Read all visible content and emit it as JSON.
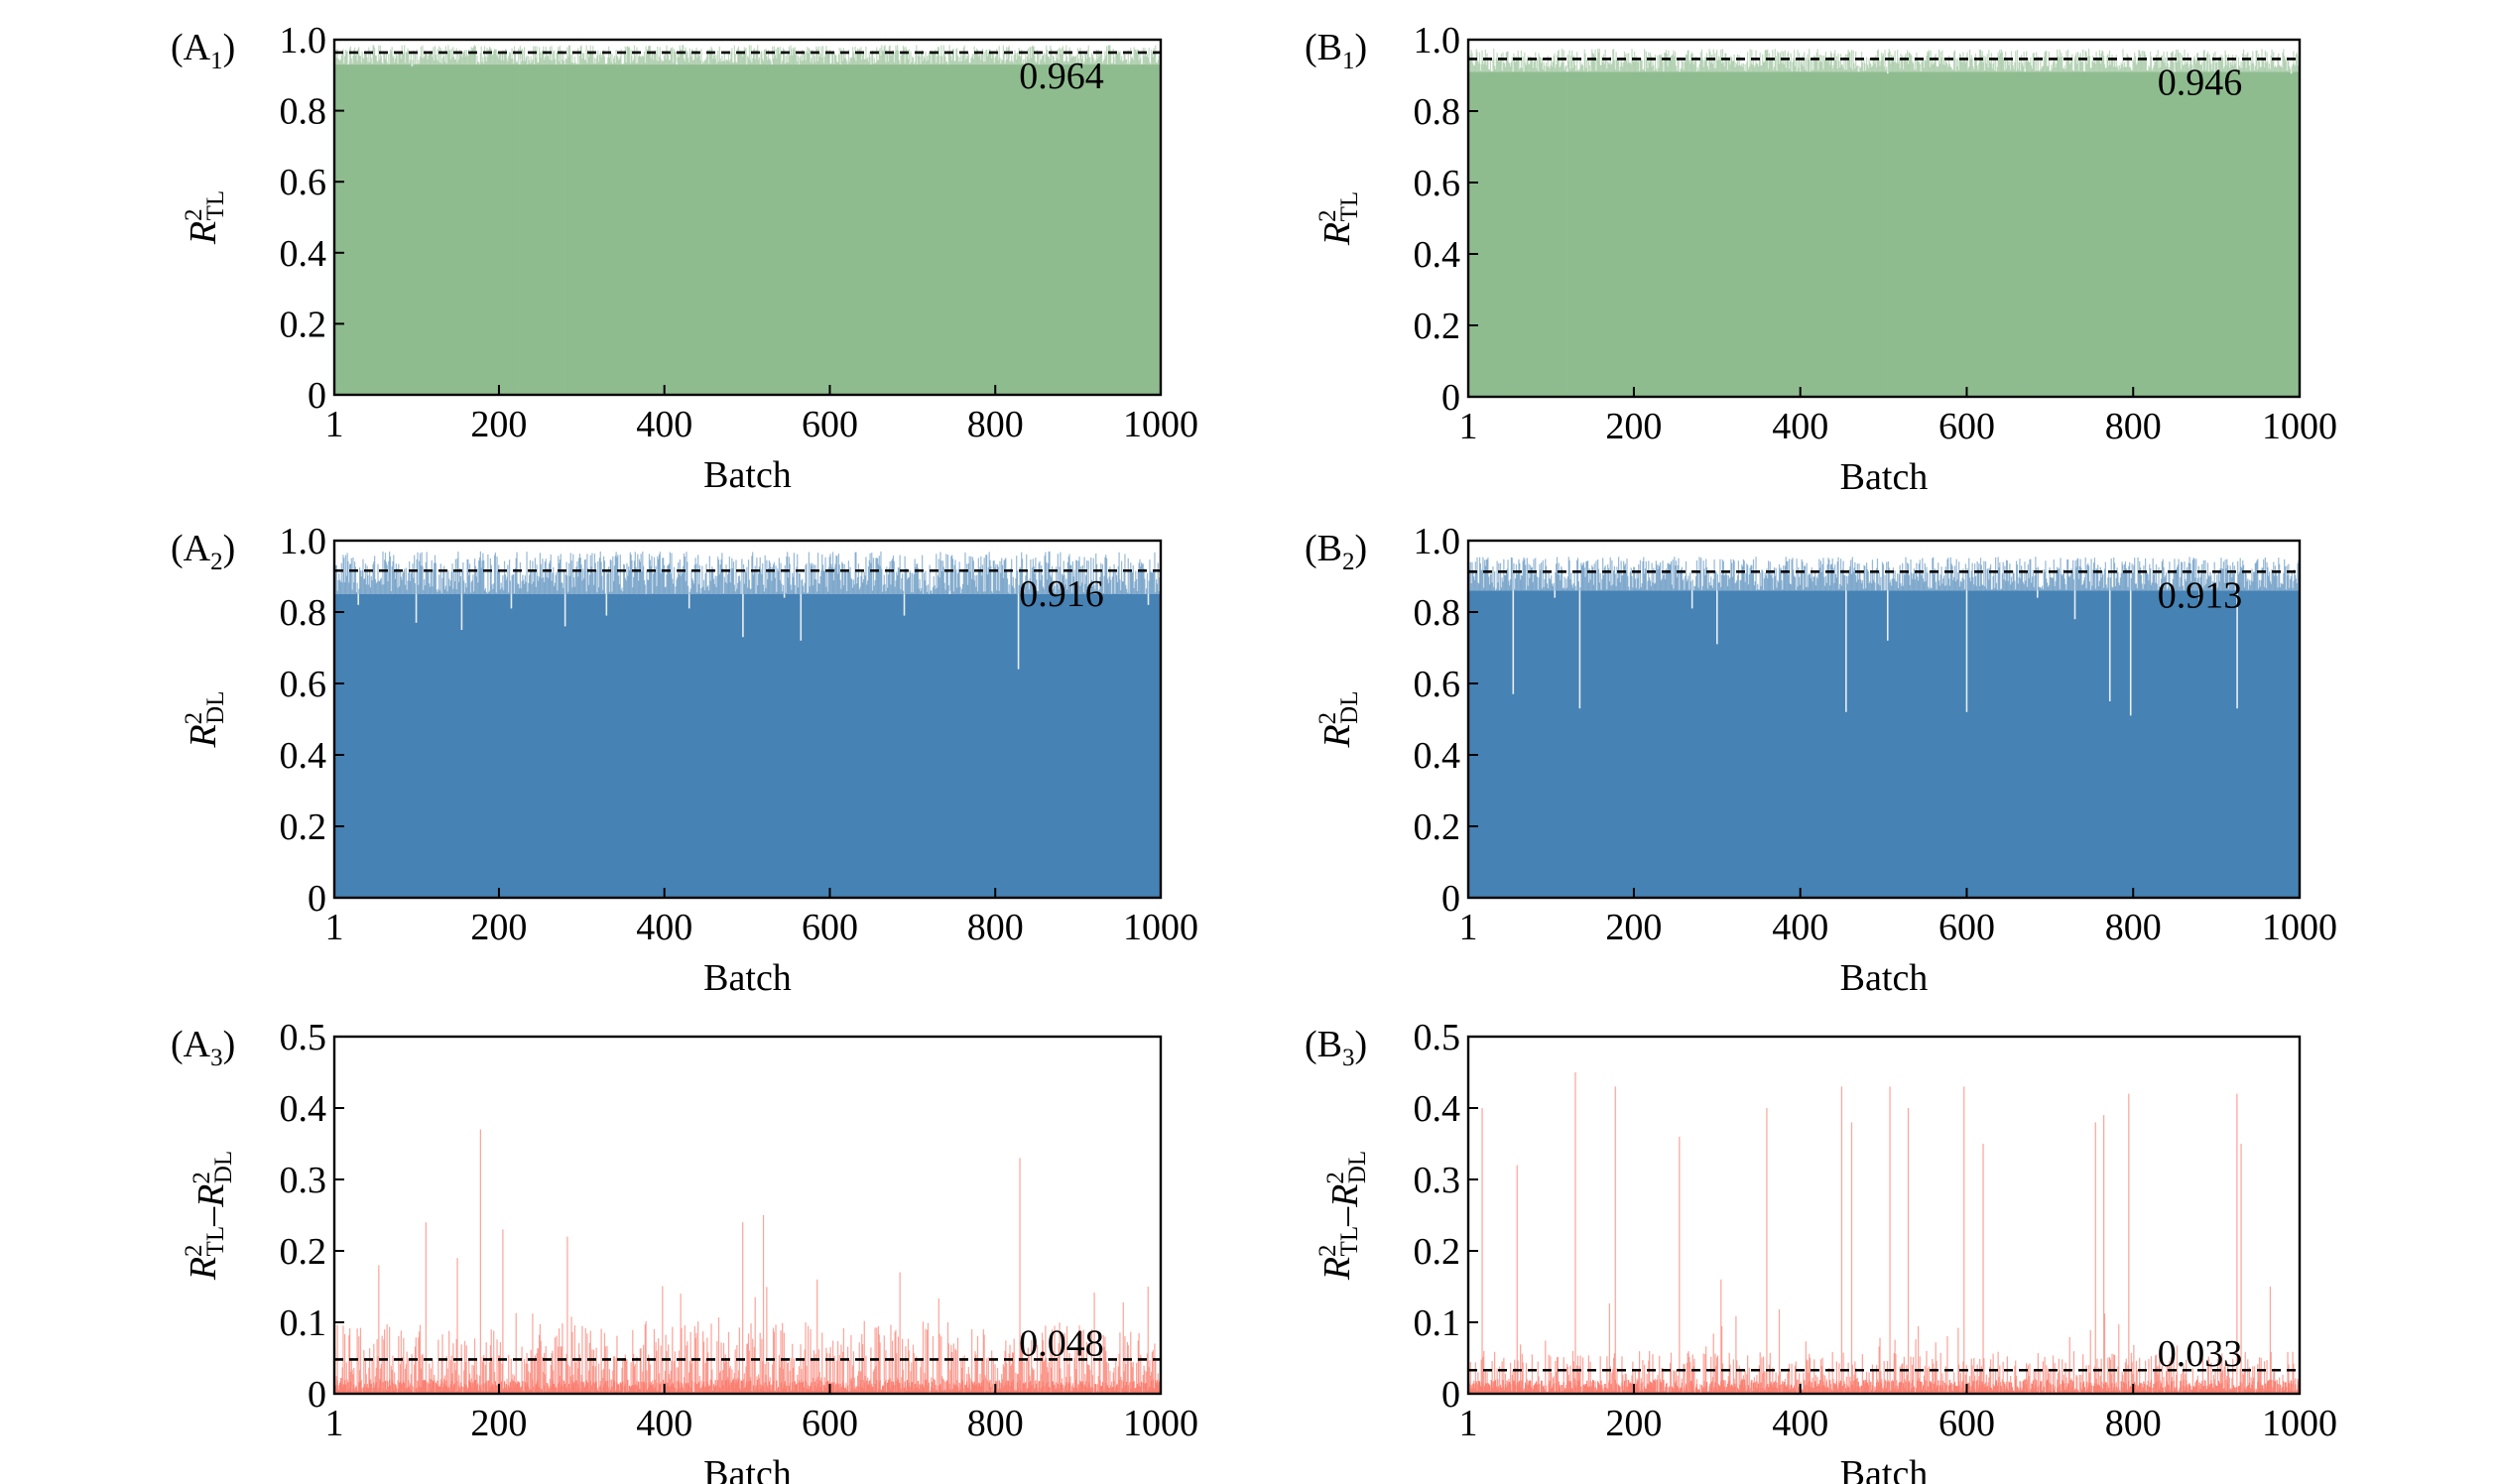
{
  "colors": {
    "tl": "#8fbc8f",
    "dl": "#4682b4",
    "diff": "#fa8072",
    "mean": "#000000"
  },
  "chart_data": [
    {
      "id": "A1",
      "type": "bar",
      "panel_label": "A",
      "panel_sub": "1",
      "ylabel_sub": "TL",
      "xlabel": "Batch",
      "xlim": [
        1,
        1000
      ],
      "ylim": [
        0,
        1.0
      ],
      "xticks": [
        "1",
        "200",
        "400",
        "600",
        "800",
        "1000"
      ],
      "yticks": [
        "0",
        "0.2",
        "0.4",
        "0.6",
        "0.8",
        "1.0"
      ],
      "mean": 0.964,
      "mean_label": "0.964",
      "series_color": "tl",
      "n_batches": 1000,
      "value_typical_range": [
        0.93,
        0.985
      ]
    },
    {
      "id": "B1",
      "type": "bar",
      "panel_label": "B",
      "panel_sub": "1",
      "ylabel_sub": "TL",
      "xlabel": "Batch",
      "xlim": [
        1,
        1000
      ],
      "ylim": [
        0,
        1.0
      ],
      "xticks": [
        "1",
        "200",
        "400",
        "600",
        "800",
        "1000"
      ],
      "yticks": [
        "0",
        "0.2",
        "0.4",
        "0.6",
        "0.8",
        "1.0"
      ],
      "mean": 0.946,
      "mean_label": "0.946",
      "series_color": "tl",
      "n_batches": 1000,
      "value_typical_range": [
        0.91,
        0.975
      ]
    },
    {
      "id": "A2",
      "type": "bar",
      "panel_label": "A",
      "panel_sub": "2",
      "ylabel_sub": "DL",
      "xlabel": "Batch",
      "xlim": [
        1,
        1000
      ],
      "ylim": [
        0,
        1.0
      ],
      "xticks": [
        "1",
        "200",
        "400",
        "600",
        "800",
        "1000"
      ],
      "yticks": [
        "0",
        "0.2",
        "0.4",
        "0.6",
        "0.8",
        "1.0"
      ],
      "mean": 0.916,
      "mean_label": "0.916",
      "series_color": "dl",
      "n_batches": 1000,
      "value_typical_range": [
        0.85,
        0.97
      ]
    },
    {
      "id": "B2",
      "type": "bar",
      "panel_label": "B",
      "panel_sub": "2",
      "ylabel_sub": "DL",
      "xlabel": "Batch",
      "xlim": [
        1,
        1000
      ],
      "ylim": [
        0,
        1.0
      ],
      "xticks": [
        "1",
        "200",
        "400",
        "600",
        "800",
        "1000"
      ],
      "yticks": [
        "0",
        "0.2",
        "0.4",
        "0.6",
        "0.8",
        "1.0"
      ],
      "mean": 0.913,
      "mean_label": "0.913",
      "series_color": "dl",
      "n_batches": 1000,
      "value_typical_range": [
        0.86,
        0.955
      ]
    },
    {
      "id": "A3",
      "type": "bar",
      "panel_label": "A",
      "panel_sub": "3",
      "ylabel_sub": "diff",
      "xlabel": "Batch",
      "xlim": [
        1,
        1000
      ],
      "ylim": [
        0,
        0.5
      ],
      "xticks": [
        "1",
        "200",
        "400",
        "600",
        "800",
        "1000"
      ],
      "yticks": [
        "0",
        "0.1",
        "0.2",
        "0.3",
        "0.4",
        "0.5"
      ],
      "mean": 0.048,
      "mean_label": "0.048",
      "series_color": "diff",
      "n_batches": 1000,
      "value_typical_range": [
        0.0,
        0.1
      ]
    },
    {
      "id": "B3",
      "type": "bar",
      "panel_label": "B",
      "panel_sub": "3",
      "ylabel_sub": "diff",
      "xlabel": "Batch",
      "xlim": [
        1,
        1000
      ],
      "ylim": [
        0,
        0.5
      ],
      "xticks": [
        "1",
        "200",
        "400",
        "600",
        "800",
        "1000"
      ],
      "yticks": [
        "0",
        "0.1",
        "0.2",
        "0.3",
        "0.4",
        "0.5"
      ],
      "mean": 0.033,
      "mean_label": "0.033",
      "series_color": "diff",
      "n_batches": 1000,
      "value_typical_range": [
        0.0,
        0.06
      ]
    }
  ],
  "spikes": {
    "A1": [
      [
        18,
        0.94
      ],
      [
        95,
        0.925
      ],
      [
        225,
        0.945
      ],
      [
        280,
        0.93
      ],
      [
        415,
        0.94
      ],
      [
        530,
        0.94
      ]
    ],
    "B1": [
      [
        55,
        0.91
      ],
      [
        120,
        0.92
      ],
      [
        255,
        0.915
      ],
      [
        470,
        0.92
      ],
      [
        505,
        0.905
      ],
      [
        670,
        0.92
      ],
      [
        850,
        0.915
      ],
      [
        990,
        0.905
      ]
    ],
    "A2": [
      [
        30,
        0.82
      ],
      [
        100,
        0.77
      ],
      [
        155,
        0.75
      ],
      [
        215,
        0.81
      ],
      [
        280,
        0.76
      ],
      [
        330,
        0.79
      ],
      [
        430,
        0.81
      ],
      [
        495,
        0.73
      ],
      [
        545,
        0.84
      ],
      [
        565,
        0.72
      ],
      [
        690,
        0.79
      ],
      [
        745,
        0.86
      ],
      [
        828,
        0.64
      ],
      [
        985,
        0.82
      ]
    ],
    "B2": [
      [
        55,
        0.57
      ],
      [
        105,
        0.84
      ],
      [
        135,
        0.53
      ],
      [
        270,
        0.81
      ],
      [
        300,
        0.71
      ],
      [
        455,
        0.52
      ],
      [
        505,
        0.72
      ],
      [
        600,
        0.52
      ],
      [
        685,
        0.84
      ],
      [
        730,
        0.78
      ],
      [
        772,
        0.55
      ],
      [
        797,
        0.51
      ],
      [
        880,
        0.82
      ],
      [
        925,
        0.53
      ]
    ],
    "A3": [
      [
        55,
        0.18
      ],
      [
        112,
        0.24
      ],
      [
        150,
        0.19
      ],
      [
        178,
        0.37
      ],
      [
        205,
        0.23
      ],
      [
        283,
        0.22
      ],
      [
        420,
        0.14
      ],
      [
        495,
        0.24
      ],
      [
        520,
        0.25
      ],
      [
        585,
        0.16
      ],
      [
        685,
        0.17
      ],
      [
        830,
        0.33
      ],
      [
        985,
        0.15
      ]
    ],
    "B3": [
      [
        18,
        0.4
      ],
      [
        60,
        0.32
      ],
      [
        130,
        0.45
      ],
      [
        178,
        0.43
      ],
      [
        255,
        0.36
      ],
      [
        305,
        0.16
      ],
      [
        360,
        0.4
      ],
      [
        450,
        0.43
      ],
      [
        462,
        0.38
      ],
      [
        508,
        0.43
      ],
      [
        530,
        0.4
      ],
      [
        597,
        0.43
      ],
      [
        620,
        0.35
      ],
      [
        755,
        0.38
      ],
      [
        765,
        0.39
      ],
      [
        795,
        0.42
      ],
      [
        925,
        0.42
      ],
      [
        930,
        0.35
      ],
      [
        965,
        0.15
      ]
    ]
  }
}
